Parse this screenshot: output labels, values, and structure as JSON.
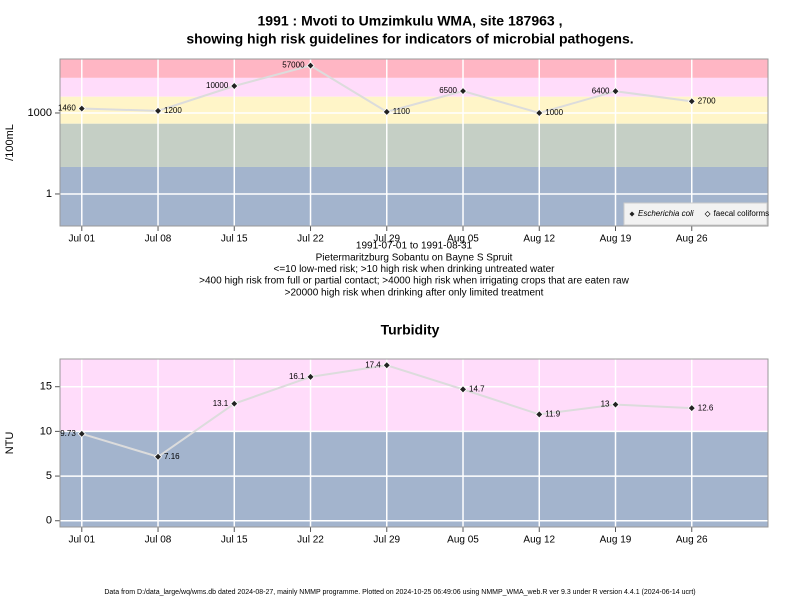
{
  "chart_data": [
    {
      "type": "line",
      "title": [
        "1991 : Mvoti to Umzimkulu WMA, site 187963 ,",
        "showing high risk guidelines for indicators of microbial pathogens."
      ],
      "ylabel": "/100mL",
      "log_y": true,
      "x": [
        "1991-07-01",
        "1991-07-08",
        "1991-07-15",
        "1991-07-22",
        "1991-07-29",
        "1991-08-05",
        "1991-08-12",
        "1991-08-19",
        "1991-08-26"
      ],
      "series": [
        {
          "name": "Escherichia coli",
          "color": "#222222",
          "marker": "filled",
          "font_style": "italic",
          "values": [
            1460,
            1200,
            10000,
            57000,
            1100,
            6500,
            1000,
            6400,
            2700
          ]
        },
        {
          "name": "faecal coliforms",
          "color": "#222222",
          "marker": "open",
          "font_style": "normal",
          "values": [
            null,
            null,
            null,
            null,
            null,
            null,
            null,
            null,
            null
          ]
        }
      ],
      "line_color": "#dcdcdc",
      "xlim": [
        "1991-06-29",
        "1991-09-02"
      ],
      "xticks": [
        {
          "value": "1991-07-01",
          "label": "Jul 01"
        },
        {
          "value": "1991-07-08",
          "label": "Jul 08"
        },
        {
          "value": "1991-07-15",
          "label": "Jul 15"
        },
        {
          "value": "1991-07-22",
          "label": "Jul 22"
        },
        {
          "value": "1991-07-29",
          "label": "Jul 29"
        },
        {
          "value": "1991-08-05",
          "label": "Aug 05"
        },
        {
          "value": "1991-08-12",
          "label": "Aug 12"
        },
        {
          "value": "1991-08-19",
          "label": "Aug 19"
        },
        {
          "value": "1991-08-26",
          "label": "Aug 26"
        }
      ],
      "ylim": [
        0.065,
        100000
      ],
      "yticks": [
        1,
        1000
      ],
      "grid": true,
      "bands": [
        {
          "min": 20000,
          "color": "#ffb6c4"
        },
        {
          "min": 4000,
          "max": 20000,
          "color": "#ffdcfa"
        },
        {
          "min": 400,
          "max": 4000,
          "color": "#fff5c8"
        },
        {
          "min": 10,
          "max": 400,
          "color": "#c5cfc5"
        },
        {
          "max": 10,
          "color": "#a3b4cd"
        }
      ],
      "legend": "bottom right",
      "notes": [
        "1991-07-01 to 1991-08-31",
        "Pietermaritzburg Sobantu on Bayne S Spruit",
        "<=10 low-med risk; >10 high risk when drinking untreated water",
        ">400 high risk from full or partial contact; >4000 high risk when irrigating crops that are eaten raw",
        ">20000 high risk when drinking after only limited treatment"
      ]
    },
    {
      "type": "line",
      "title": [
        "Turbidity"
      ],
      "ylabel": "NTU",
      "log_y": false,
      "x": [
        "1991-07-01",
        "1991-07-08",
        "1991-07-15",
        "1991-07-22",
        "1991-07-29",
        "1991-08-05",
        "1991-08-12",
        "1991-08-19",
        "1991-08-26"
      ],
      "series": [
        {
          "color": "#222222",
          "marker": "filled",
          "values": [
            9.73,
            7.16,
            13.1,
            16.1,
            17.4,
            14.7,
            11.9,
            13,
            12.6
          ]
        }
      ],
      "line_color": "#dcdcdc",
      "xlim": [
        "1991-06-29",
        "1991-09-02"
      ],
      "xticks": [
        {
          "value": "1991-07-01",
          "label": "Jul 01"
        },
        {
          "value": "1991-07-08",
          "label": "Jul 08"
        },
        {
          "value": "1991-07-15",
          "label": "Jul 15"
        },
        {
          "value": "1991-07-22",
          "label": "Jul 22"
        },
        {
          "value": "1991-07-29",
          "label": "Jul 29"
        },
        {
          "value": "1991-08-05",
          "label": "Aug 05"
        },
        {
          "value": "1991-08-12",
          "label": "Aug 12"
        },
        {
          "value": "1991-08-19",
          "label": "Aug 19"
        },
        {
          "value": "1991-08-26",
          "label": "Aug 26"
        }
      ],
      "ylim": [
        -0.7,
        18.1
      ],
      "yticks": [
        0,
        5,
        10,
        15
      ],
      "grid": true,
      "bands": [
        {
          "min": 10,
          "color": "#ffdcfa"
        },
        {
          "max": 10,
          "color": "#a3b4cd"
        }
      ]
    }
  ],
  "footer": "Data from D:/data_large/wq/wms.db dated 2024-08-27, mainly NMMP programme. Plotted on 2024-10-25 06:49:06 using NMMP_WMA_web.R ver 9.3 under R version 4.4.1 (2024-06-14 ucrt)"
}
